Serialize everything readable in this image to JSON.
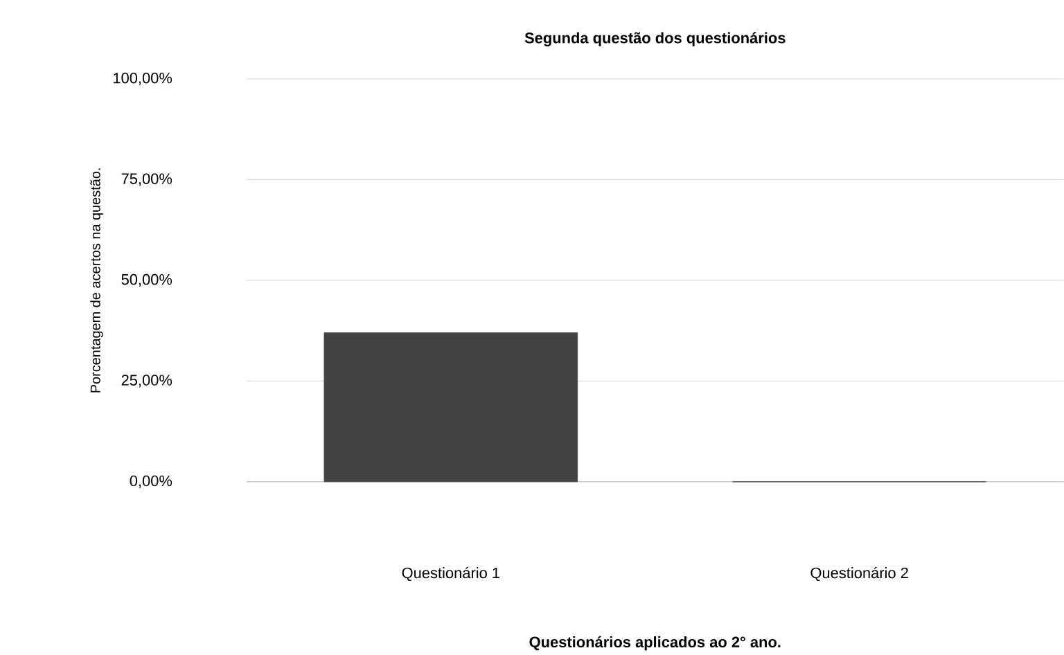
{
  "chart_data": {
    "type": "bar",
    "title": "Segunda questão dos questionários",
    "xlabel": "Questionários aplicados ao 2° ano.",
    "ylabel": "Porcentagem de acertos na questão.",
    "categories": [
      "Questionário 1",
      "Questionário 2"
    ],
    "values": [
      37,
      0
    ],
    "color": "#434343",
    "ylim": [
      0,
      100
    ],
    "yticks": [
      {
        "value": 0,
        "label": "0,00%"
      },
      {
        "value": 25,
        "label": "25,00%"
      },
      {
        "value": 50,
        "label": "50,00%"
      },
      {
        "value": 75,
        "label": "75,00%"
      },
      {
        "value": 100,
        "label": "100,00%"
      }
    ],
    "grid": "y"
  }
}
